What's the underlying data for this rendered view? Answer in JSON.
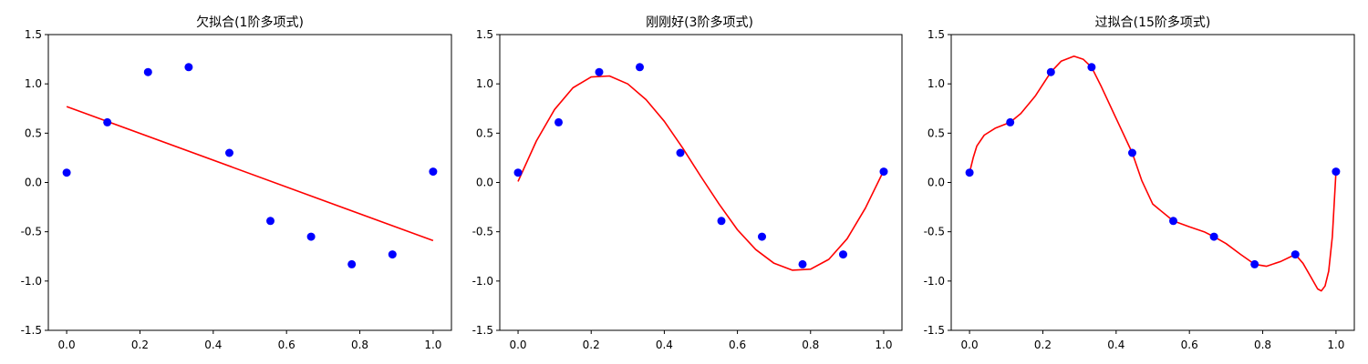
{
  "chart_data": [
    {
      "type": "scatter",
      "title": "欠拟合(1阶多项式)",
      "xlim": [
        -0.05,
        1.05
      ],
      "ylim": [
        -1.5,
        1.5
      ],
      "xticks": [
        "0.0",
        "0.2",
        "0.4",
        "0.6",
        "0.8",
        "1.0"
      ],
      "yticks": [
        "-1.5",
        "-1.0",
        "-0.5",
        "0.0",
        "0.5",
        "1.0",
        "1.5"
      ],
      "grid": false,
      "points_color": "#0000ff",
      "curve_color": "#ff0000",
      "points": {
        "x": [
          0.0,
          0.111,
          0.222,
          0.333,
          0.444,
          0.556,
          0.667,
          0.778,
          0.889,
          1.0
        ],
        "y": [
          0.1,
          0.61,
          1.12,
          1.17,
          0.3,
          -0.39,
          -0.55,
          -0.83,
          -0.73,
          0.11
        ]
      },
      "fit": {
        "x": [
          0.0,
          1.0
        ],
        "y": [
          0.77,
          -0.59
        ]
      }
    },
    {
      "type": "scatter",
      "title": "刚刚好(3阶多项式)",
      "xlim": [
        -0.05,
        1.05
      ],
      "ylim": [
        -1.5,
        1.5
      ],
      "xticks": [
        "0.0",
        "0.2",
        "0.4",
        "0.6",
        "0.8",
        "1.0"
      ],
      "yticks": [
        "-1.5",
        "-1.0",
        "-0.5",
        "0.0",
        "0.5",
        "1.0",
        "1.5"
      ],
      "grid": false,
      "points_color": "#0000ff",
      "curve_color": "#ff0000",
      "points": {
        "x": [
          0.0,
          0.111,
          0.222,
          0.333,
          0.444,
          0.556,
          0.667,
          0.778,
          0.889,
          1.0
        ],
        "y": [
          0.1,
          0.61,
          1.12,
          1.17,
          0.3,
          -0.39,
          -0.55,
          -0.83,
          -0.73,
          0.11
        ]
      },
      "fit": {
        "x": [
          0.0,
          0.05,
          0.1,
          0.15,
          0.2,
          0.25,
          0.3,
          0.35,
          0.4,
          0.45,
          0.5,
          0.55,
          0.6,
          0.65,
          0.7,
          0.75,
          0.8,
          0.85,
          0.9,
          0.95,
          1.0
        ],
        "y": [
          0.01,
          0.42,
          0.74,
          0.96,
          1.07,
          1.08,
          1.0,
          0.84,
          0.62,
          0.35,
          0.06,
          -0.22,
          -0.48,
          -0.68,
          -0.82,
          -0.89,
          -0.88,
          -0.78,
          -0.57,
          -0.26,
          0.12
        ]
      }
    },
    {
      "type": "scatter",
      "title": "过拟合(15阶多项式)",
      "xlim": [
        -0.05,
        1.05
      ],
      "ylim": [
        -1.5,
        1.5
      ],
      "xticks": [
        "0.0",
        "0.2",
        "0.4",
        "0.6",
        "0.8",
        "1.0"
      ],
      "yticks": [
        "-1.5",
        "-1.0",
        "-0.5",
        "0.0",
        "0.5",
        "1.0",
        "1.5"
      ],
      "grid": false,
      "points_color": "#0000ff",
      "curve_color": "#ff0000",
      "points": {
        "x": [
          0.0,
          0.111,
          0.222,
          0.333,
          0.444,
          0.556,
          0.667,
          0.778,
          0.889,
          1.0
        ],
        "y": [
          0.1,
          0.61,
          1.12,
          1.17,
          0.3,
          -0.39,
          -0.55,
          -0.83,
          -0.73,
          0.11
        ]
      },
      "fit": {
        "x": [
          0.0,
          0.01,
          0.02,
          0.04,
          0.07,
          0.111,
          0.14,
          0.18,
          0.222,
          0.25,
          0.285,
          0.31,
          0.333,
          0.36,
          0.4,
          0.444,
          0.47,
          0.5,
          0.556,
          0.6,
          0.64,
          0.667,
          0.7,
          0.74,
          0.778,
          0.81,
          0.85,
          0.889,
          0.91,
          0.93,
          0.95,
          0.96,
          0.97,
          0.98,
          0.99,
          1.0
        ],
        "y": [
          0.1,
          0.25,
          0.37,
          0.48,
          0.55,
          0.61,
          0.7,
          0.88,
          1.12,
          1.23,
          1.28,
          1.25,
          1.17,
          0.97,
          0.65,
          0.3,
          0.02,
          -0.22,
          -0.39,
          -0.45,
          -0.5,
          -0.55,
          -0.62,
          -0.73,
          -0.83,
          -0.85,
          -0.8,
          -0.73,
          -0.82,
          -0.95,
          -1.08,
          -1.1,
          -1.05,
          -0.9,
          -0.55,
          0.11
        ]
      }
    }
  ]
}
